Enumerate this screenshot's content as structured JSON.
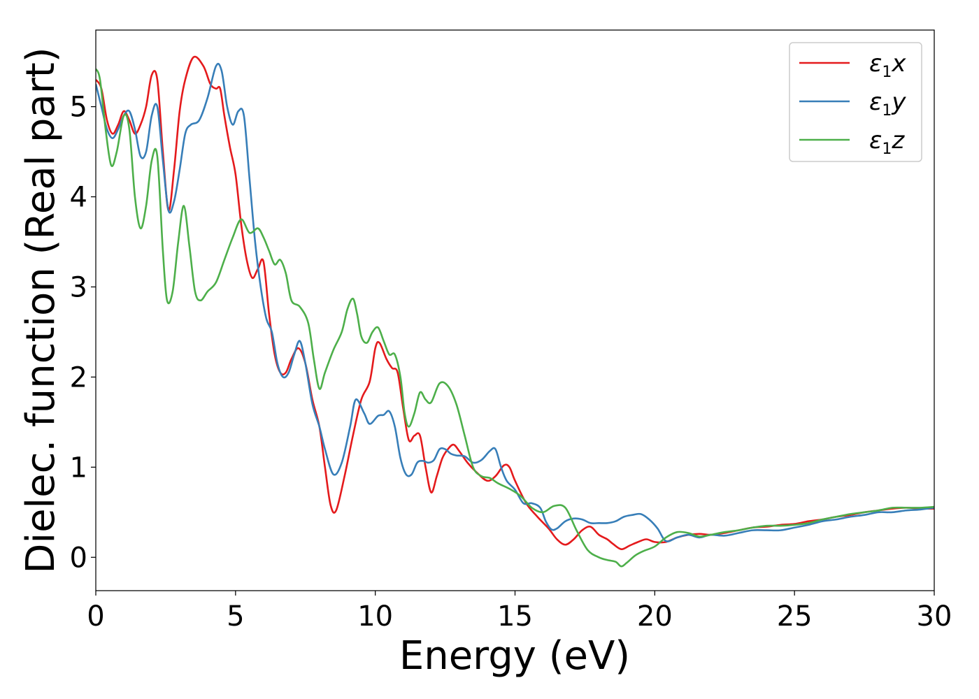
{
  "chart_data": {
    "type": "line",
    "title": "",
    "xlabel": "Energy (eV)",
    "ylabel": "Dielec. function (Real part)",
    "xlim": [
      0,
      30
    ],
    "ylim": [
      -0.37,
      5.85
    ],
    "xticks": [
      0,
      5,
      10,
      15,
      20,
      25,
      30
    ],
    "xtick_labels": [
      "0",
      "5",
      "10",
      "15",
      "20",
      "25",
      "30"
    ],
    "yticks": [
      0,
      1,
      2,
      3,
      4,
      5
    ],
    "ytick_labels": [
      "0",
      "1",
      "2",
      "3",
      "4",
      "5"
    ],
    "grid": false,
    "legend_position": "top-right",
    "series": [
      {
        "name": "ε1x",
        "legend_symbol": "ε",
        "legend_subscript": "1",
        "legend_suffix": "x",
        "color": "#e41a1c",
        "x": [
          0,
          0.2,
          0.4,
          0.6,
          0.8,
          1.0,
          1.2,
          1.4,
          1.6,
          1.8,
          2.0,
          2.2,
          2.4,
          2.6,
          2.8,
          3.0,
          3.2,
          3.5,
          3.85,
          4.1,
          4.3,
          4.45,
          4.6,
          4.8,
          5.0,
          5.2,
          5.4,
          5.6,
          5.8,
          6.0,
          6.2,
          6.4,
          6.6,
          6.8,
          7.0,
          7.25,
          7.5,
          7.75,
          8.0,
          8.2,
          8.4,
          8.6,
          8.9,
          9.2,
          9.5,
          9.8,
          10.0,
          10.15,
          10.4,
          10.6,
          10.8,
          11.0,
          11.2,
          11.4,
          11.6,
          11.8,
          12.0,
          12.2,
          12.4,
          12.6,
          12.8,
          13.0,
          13.3,
          13.6,
          14.0,
          14.3,
          14.6,
          14.8,
          15.0,
          15.4,
          15.8,
          16.2,
          16.5,
          16.8,
          17.1,
          17.4,
          17.7,
          18.0,
          18.3,
          18.5,
          18.8,
          19.1,
          19.4,
          19.7,
          20.0,
          20.4,
          20.8,
          21.2,
          21.6,
          22.0,
          22.5,
          23.0,
          23.5,
          24.0,
          24.5,
          25.0,
          25.5,
          26.0,
          26.5,
          27.0,
          27.5,
          28.0,
          28.5,
          29.0,
          29.5,
          30.0
        ],
        "y": [
          5.3,
          5.2,
          4.85,
          4.7,
          4.8,
          4.95,
          4.85,
          4.7,
          4.8,
          5.0,
          5.35,
          5.3,
          4.5,
          3.85,
          4.3,
          4.95,
          5.3,
          5.55,
          5.45,
          5.25,
          5.2,
          5.2,
          4.9,
          4.55,
          4.25,
          3.7,
          3.3,
          3.1,
          3.2,
          3.28,
          2.7,
          2.25,
          2.05,
          2.05,
          2.2,
          2.32,
          2.15,
          1.75,
          1.45,
          1.0,
          0.58,
          0.52,
          0.9,
          1.35,
          1.75,
          1.95,
          2.32,
          2.38,
          2.2,
          2.1,
          2.05,
          1.65,
          1.3,
          1.35,
          1.35,
          1.0,
          0.72,
          0.9,
          1.1,
          1.2,
          1.25,
          1.18,
          1.05,
          0.95,
          0.85,
          0.9,
          1.02,
          1.0,
          0.85,
          0.6,
          0.45,
          0.32,
          0.2,
          0.14,
          0.2,
          0.3,
          0.34,
          0.25,
          0.2,
          0.15,
          0.09,
          0.13,
          0.17,
          0.2,
          0.17,
          0.17,
          0.22,
          0.25,
          0.26,
          0.25,
          0.27,
          0.3,
          0.33,
          0.34,
          0.36,
          0.37,
          0.4,
          0.42,
          0.45,
          0.47,
          0.5,
          0.52,
          0.54,
          0.55,
          0.54,
          0.54
        ]
      },
      {
        "name": "ε1y",
        "legend_symbol": "ε",
        "legend_subscript": "1",
        "legend_suffix": "y",
        "color": "#377eb8",
        "x": [
          0,
          0.2,
          0.4,
          0.6,
          0.8,
          1.0,
          1.2,
          1.4,
          1.6,
          1.8,
          2.0,
          2.2,
          2.4,
          2.6,
          2.8,
          3.0,
          3.2,
          3.4,
          3.7,
          4.0,
          4.3,
          4.5,
          4.7,
          4.9,
          5.1,
          5.3,
          5.5,
          5.7,
          5.9,
          6.1,
          6.3,
          6.5,
          6.7,
          6.9,
          7.1,
          7.3,
          7.5,
          7.75,
          8.0,
          8.2,
          8.5,
          8.8,
          9.1,
          9.3,
          9.6,
          9.8,
          10.1,
          10.3,
          10.5,
          10.7,
          10.9,
          11.1,
          11.3,
          11.5,
          11.7,
          11.9,
          12.1,
          12.3,
          12.5,
          12.7,
          12.9,
          13.2,
          13.5,
          13.8,
          14.1,
          14.3,
          14.5,
          14.7,
          15.0,
          15.3,
          15.6,
          15.9,
          16.1,
          16.3,
          16.5,
          16.8,
          17.1,
          17.4,
          17.7,
          18.0,
          18.3,
          18.6,
          18.9,
          19.2,
          19.5,
          19.8,
          20.1,
          20.4,
          20.8,
          21.2,
          21.6,
          22.0,
          22.5,
          23.0,
          23.5,
          24.0,
          24.5,
          25.0,
          25.5,
          26.0,
          26.5,
          27.0,
          27.5,
          28.0,
          28.5,
          29.0,
          29.5,
          30.0
        ],
        "y": [
          5.25,
          5.0,
          4.75,
          4.65,
          4.75,
          4.9,
          4.95,
          4.75,
          4.45,
          4.5,
          4.9,
          5.0,
          4.4,
          3.85,
          3.95,
          4.3,
          4.7,
          4.8,
          4.85,
          5.1,
          5.45,
          5.4,
          5.0,
          4.8,
          4.95,
          4.9,
          4.2,
          3.5,
          3.0,
          2.65,
          2.5,
          2.15,
          2.0,
          2.05,
          2.25,
          2.4,
          2.15,
          1.7,
          1.45,
          1.2,
          0.92,
          1.05,
          1.45,
          1.75,
          1.6,
          1.48,
          1.57,
          1.58,
          1.62,
          1.45,
          1.1,
          0.92,
          0.92,
          1.05,
          1.07,
          1.05,
          1.08,
          1.2,
          1.2,
          1.15,
          1.13,
          1.12,
          1.05,
          1.08,
          1.18,
          1.2,
          1.0,
          0.85,
          0.75,
          0.6,
          0.6,
          0.55,
          0.4,
          0.31,
          0.32,
          0.4,
          0.43,
          0.42,
          0.38,
          0.38,
          0.38,
          0.4,
          0.45,
          0.47,
          0.48,
          0.42,
          0.32,
          0.18,
          0.22,
          0.25,
          0.22,
          0.25,
          0.24,
          0.27,
          0.3,
          0.3,
          0.3,
          0.33,
          0.36,
          0.4,
          0.42,
          0.45,
          0.47,
          0.5,
          0.5,
          0.52,
          0.53,
          0.55
        ]
      },
      {
        "name": "ε1z",
        "legend_symbol": "ε",
        "legend_subscript": "1",
        "legend_suffix": "z",
        "color": "#4daf4a",
        "x": [
          0,
          0.15,
          0.35,
          0.55,
          0.75,
          1.0,
          1.2,
          1.4,
          1.6,
          1.8,
          2.0,
          2.2,
          2.4,
          2.55,
          2.75,
          2.95,
          3.15,
          3.35,
          3.55,
          3.75,
          4.0,
          4.3,
          4.6,
          4.9,
          5.2,
          5.5,
          5.8,
          6.0,
          6.2,
          6.4,
          6.6,
          6.8,
          7.0,
          7.3,
          7.6,
          7.8,
          8.0,
          8.2,
          8.5,
          8.8,
          9.0,
          9.2,
          9.35,
          9.5,
          9.7,
          9.9,
          10.1,
          10.3,
          10.5,
          10.7,
          10.9,
          11.05,
          11.2,
          11.4,
          11.6,
          11.8,
          12.0,
          12.3,
          12.6,
          12.9,
          13.2,
          13.5,
          13.8,
          14.1,
          14.4,
          14.8,
          15.2,
          15.6,
          16.0,
          16.4,
          16.8,
          17.2,
          17.6,
          18.0,
          18.3,
          18.6,
          18.8,
          19.0,
          19.3,
          19.6,
          20.0,
          20.4,
          20.8,
          21.2,
          21.6,
          22.0,
          22.5,
          23.0,
          23.5,
          24.0,
          24.5,
          25.0,
          25.5,
          26.0,
          26.5,
          27.0,
          27.5,
          28.0,
          28.5,
          29.0,
          29.5,
          30.0
        ],
        "y": [
          5.42,
          5.3,
          4.75,
          4.35,
          4.5,
          4.9,
          4.75,
          4.0,
          3.65,
          3.9,
          4.4,
          4.45,
          3.4,
          2.85,
          2.95,
          3.5,
          3.9,
          3.45,
          2.95,
          2.85,
          2.95,
          3.05,
          3.3,
          3.55,
          3.75,
          3.6,
          3.65,
          3.55,
          3.4,
          3.25,
          3.3,
          3.15,
          2.85,
          2.78,
          2.6,
          2.2,
          1.87,
          2.05,
          2.3,
          2.5,
          2.75,
          2.87,
          2.7,
          2.45,
          2.38,
          2.5,
          2.55,
          2.4,
          2.25,
          2.25,
          2.0,
          1.6,
          1.45,
          1.6,
          1.83,
          1.75,
          1.72,
          1.93,
          1.9,
          1.7,
          1.35,
          1.0,
          0.9,
          0.88,
          0.82,
          0.76,
          0.68,
          0.55,
          0.5,
          0.57,
          0.55,
          0.3,
          0.08,
          0.0,
          -0.03,
          -0.05,
          -0.1,
          -0.06,
          0.02,
          0.07,
          0.12,
          0.22,
          0.28,
          0.27,
          0.23,
          0.25,
          0.28,
          0.3,
          0.33,
          0.35,
          0.35,
          0.36,
          0.38,
          0.42,
          0.45,
          0.48,
          0.5,
          0.52,
          0.55,
          0.55,
          0.55,
          0.56
        ]
      }
    ]
  }
}
